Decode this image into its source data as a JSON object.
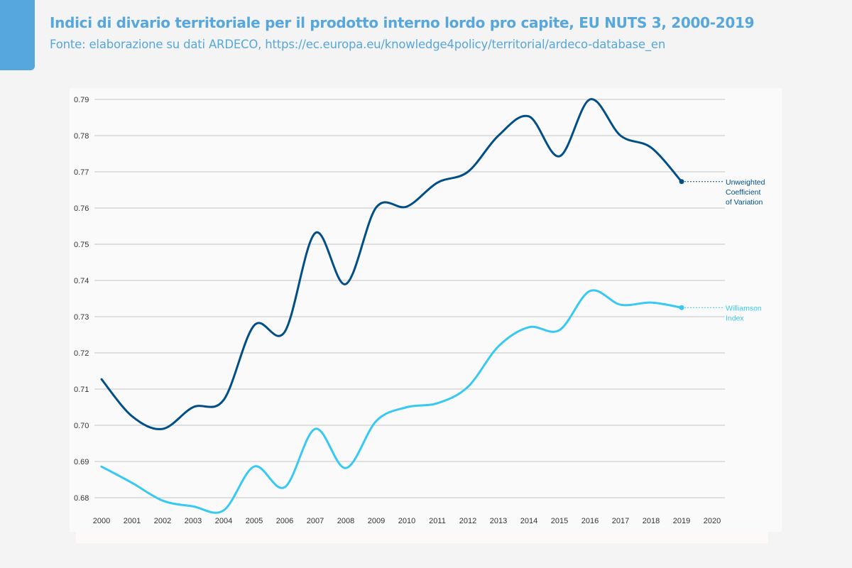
{
  "header": {
    "title": "Indici di divario territoriale per il prodotto interno lordo pro capite, EU NUTS 3, 2000-2019",
    "subtitle": "Fonte: elaborazione su dati ARDECO, https://ec.europa.eu/knowledge4policy/territorial/ardeco-database_en"
  },
  "colors": {
    "accent": "#56a7dc",
    "series_dark": "#014f86",
    "series_light": "#38c9f2",
    "grid": "#c4c4c4"
  },
  "chart_data": {
    "type": "line",
    "title": "Indici di divario territoriale per il prodotto interno lordo pro capite, EU NUTS 3, 2000-2019",
    "xlabel": "",
    "ylabel": "",
    "x": [
      2000,
      2001,
      2002,
      2003,
      2004,
      2005,
      2006,
      2007,
      2008,
      2009,
      2010,
      2011,
      2012,
      2013,
      2014,
      2015,
      2016,
      2017,
      2018,
      2019
    ],
    "x_ticks": [
      "2000",
      "2001",
      "2002",
      "2003",
      "2004",
      "2005",
      "2006",
      "2007",
      "2008",
      "2009",
      "2010",
      "2011",
      "2012",
      "2013",
      "2014",
      "2015",
      "2016",
      "2017",
      "2018",
      "2019",
      "2020"
    ],
    "xlim": [
      2000,
      2020
    ],
    "y_ticks": [
      "0.68",
      "0.69",
      "0.70",
      "0.71",
      "0.72",
      "0.73",
      "0.74",
      "0.75",
      "0.76",
      "0.77",
      "0.78",
      "0.79"
    ],
    "ylim": [
      0.68,
      0.79
    ],
    "grid": true,
    "legend": "direct-labels-right",
    "series": [
      {
        "name": "Unweighted Coefficient of Variation",
        "label_lines": [
          "Unweighted",
          "Coefficient",
          "of Variation"
        ],
        "color": "#014f86",
        "values": [
          0.7127,
          0.7025,
          0.699,
          0.705,
          0.707,
          0.7276,
          0.7258,
          0.7531,
          0.739,
          0.7602,
          0.7604,
          0.767,
          0.77,
          0.78,
          0.7853,
          0.7743,
          0.79,
          0.78,
          0.7767,
          0.7673
        ]
      },
      {
        "name": "Williamson Index",
        "label_lines": [
          "Williamson",
          "Index"
        ],
        "color": "#38c9f2",
        "values": [
          0.6886,
          0.6841,
          0.6792,
          0.6776,
          0.6765,
          0.6886,
          0.6829,
          0.699,
          0.6882,
          0.7012,
          0.705,
          0.7061,
          0.7106,
          0.7218,
          0.7271,
          0.7263,
          0.7371,
          0.7333,
          0.7339,
          0.7325
        ]
      }
    ]
  }
}
